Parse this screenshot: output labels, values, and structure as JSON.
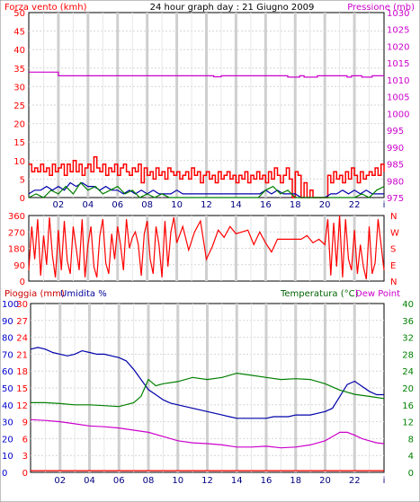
{
  "chart_data": [
    {
      "type": "line",
      "title": "24 hour graph day : 21 Giugno 2009",
      "left_axis": {
        "label": "Forza vento (kmh)",
        "ylim": [
          0,
          50
        ],
        "ticks": [
          0,
          5,
          10,
          15,
          20,
          25,
          30,
          35,
          40,
          45,
          50
        ],
        "color": "#ff0000"
      },
      "right_axis": {
        "label": "Pressione (mb)",
        "ylim": [
          975,
          1030
        ],
        "ticks": [
          975,
          980,
          985,
          990,
          995,
          1000,
          1005,
          1010,
          1015,
          1020,
          1025,
          1030
        ],
        "color": "#cc00cc"
      },
      "x_ticks": [
        "02",
        "04",
        "06",
        "08",
        "10",
        "12",
        "14",
        "16",
        "18",
        "20",
        "22"
      ],
      "x_end_marker": "i",
      "xlim": [
        0,
        24
      ],
      "grid": true,
      "series": [
        {
          "axis": "right",
          "color": "#cc00cc",
          "x": [
            0,
            2.0,
            2.0,
            12.5,
            12.5,
            13.0,
            13.0,
            17.5,
            17.5,
            18.3,
            18.3,
            18.6,
            18.6,
            19.5,
            19.5,
            21.5,
            21.5,
            21.8,
            21.8,
            22.5,
            22.5,
            23.2,
            23.2,
            24
          ],
          "y": [
            1012.3,
            1012.3,
            1011.2,
            1011.2,
            1010.9,
            1010.9,
            1011.2,
            1011.2,
            1010.8,
            1010.8,
            1011.2,
            1011.2,
            1010.8,
            1010.8,
            1011.2,
            1011.2,
            1010.8,
            1010.8,
            1011.2,
            1011.2,
            1010.8,
            1010.8,
            1011.2,
            1011.2
          ]
        },
        {
          "axis": "left",
          "color": "#ff0000",
          "x": [
            0,
            0.2,
            0.4,
            0.6,
            0.8,
            1.0,
            1.2,
            1.4,
            1.6,
            1.8,
            2.0,
            2.2,
            2.4,
            2.6,
            2.8,
            3.0,
            3.2,
            3.4,
            3.6,
            3.8,
            4.0,
            4.2,
            4.4,
            4.6,
            4.8,
            5.0,
            5.2,
            5.4,
            5.6,
            5.8,
            6.0,
            6.2,
            6.4,
            6.6,
            6.8,
            7.0,
            7.2,
            7.4,
            7.6,
            7.8,
            8.0,
            8.2,
            8.4,
            8.6,
            8.8,
            9.0,
            9.2,
            9.4,
            9.6,
            9.8,
            10.0,
            10.2,
            10.4,
            10.6,
            10.8,
            11.0,
            11.2,
            11.4,
            11.6,
            11.8,
            12.0,
            12.2,
            12.4,
            12.6,
            12.8,
            13.0,
            13.2,
            13.4,
            13.6,
            13.8,
            14.0,
            14.2,
            14.4,
            14.6,
            14.8,
            15.0,
            15.2,
            15.4,
            15.6,
            15.8,
            16.0,
            16.2,
            16.4,
            16.6,
            16.8,
            17.0,
            17.2,
            17.4,
            17.6,
            17.8,
            18.0,
            18.2,
            18.4,
            18.6,
            18.8,
            19.0,
            19.2,
            19.4,
            19.6,
            19.8,
            20.0,
            20.2,
            20.4,
            20.6,
            20.8,
            21.0,
            21.2,
            21.4,
            21.6,
            21.8,
            22.0,
            22.2,
            22.4,
            22.6,
            22.8,
            23.0,
            23.2,
            23.4,
            23.6,
            23.8,
            24.0
          ],
          "y": [
            9,
            7,
            8,
            7,
            9,
            7,
            8,
            6,
            9,
            7,
            8,
            9,
            6,
            9,
            7,
            10,
            7,
            9,
            6,
            8,
            9,
            7,
            11,
            8,
            7,
            9,
            6,
            8,
            7,
            9,
            6,
            8,
            9,
            7,
            6,
            8,
            7,
            9,
            4,
            8,
            6,
            7,
            5,
            8,
            6,
            7,
            5,
            8,
            7,
            6,
            7,
            5,
            6,
            7,
            5,
            8,
            6,
            7,
            4,
            6,
            7,
            5,
            6,
            4,
            7,
            5,
            6,
            7,
            5,
            6,
            4,
            6,
            5,
            7,
            4,
            6,
            5,
            7,
            5,
            6,
            4,
            7,
            5,
            8,
            6,
            4,
            6,
            8,
            5,
            0,
            7,
            6,
            0,
            4,
            0,
            2,
            0,
            0,
            0,
            0,
            0,
            6,
            4,
            7,
            5,
            6,
            4,
            7,
            5,
            8,
            6,
            4,
            7,
            5,
            6,
            7,
            6,
            8,
            6,
            9,
            7
          ]
        },
        {
          "axis": "left",
          "color": "#0000aa",
          "x": [
            0,
            0.4,
            0.8,
            1.2,
            1.6,
            2.0,
            2.4,
            2.8,
            3.2,
            3.6,
            4.0,
            4.4,
            4.8,
            5.2,
            5.6,
            6.0,
            6.4,
            6.8,
            7.2,
            7.6,
            8.0,
            8.4,
            8.8,
            9.2,
            9.6,
            10.0,
            10.4,
            10.8,
            11.2,
            11.6,
            12.0,
            12.4,
            12.8,
            13.2,
            13.6,
            14.0,
            14.4,
            14.8,
            15.2,
            15.6,
            16.0,
            16.4,
            16.8,
            17.2,
            17.6,
            18.0,
            18.4,
            18.8,
            19.2,
            19.6,
            20.0,
            20.4,
            20.8,
            21.2,
            21.6,
            22.0,
            22.4,
            22.8,
            23.2,
            23.6,
            24.0
          ],
          "y": [
            1,
            2,
            2,
            3,
            2,
            3,
            2,
            4,
            3,
            4,
            3,
            3,
            2,
            3,
            2,
            2,
            1,
            2,
            1,
            2,
            1,
            2,
            1,
            1,
            1,
            2,
            1,
            1,
            1,
            1,
            1,
            1,
            1,
            1,
            1,
            1,
            1,
            1,
            1,
            1,
            2,
            1,
            2,
            1,
            1,
            1,
            0,
            0,
            0,
            0,
            0,
            1,
            1,
            2,
            1,
            2,
            1,
            2,
            1,
            1,
            1
          ]
        },
        {
          "axis": "left",
          "color": "#008000",
          "x": [
            0,
            0.5,
            1.0,
            1.5,
            2.0,
            2.5,
            3.0,
            3.5,
            4.0,
            4.5,
            5.0,
            5.5,
            6.0,
            6.5,
            7.0,
            7.5,
            8.0,
            8.5,
            9.0,
            9.5,
            10.0,
            10.5,
            11.0,
            11.5,
            12.0,
            12.5,
            13.0,
            13.5,
            14.0,
            14.5,
            15.0,
            15.5,
            16.0,
            16.5,
            17.0,
            17.5,
            18.0,
            18.5,
            19.0,
            19.5,
            20.0,
            20.5,
            21.0,
            21.5,
            22.0,
            22.5,
            23.0,
            23.5,
            24.0
          ],
          "y": [
            0,
            1,
            0,
            2,
            1,
            3,
            1,
            4,
            2,
            3,
            1,
            2,
            3,
            1,
            2,
            0,
            1,
            0,
            1,
            0,
            0,
            0,
            0,
            0,
            0,
            0,
            0,
            0,
            0,
            0,
            0,
            0,
            2,
            3,
            1,
            2,
            0,
            0,
            0,
            0,
            0,
            0,
            0,
            0,
            0,
            1,
            0,
            2,
            3
          ]
        }
      ]
    },
    {
      "type": "line",
      "left_axis": {
        "ylim": [
          0,
          360
        ],
        "ticks": [
          0,
          90,
          180,
          270,
          360
        ],
        "color": "#ff0000"
      },
      "right_axis": {
        "ticks": [
          "N",
          "E",
          "S",
          "W",
          "N"
        ],
        "color": "#ff0000"
      },
      "x_ticks": [],
      "xlim": [
        0,
        24
      ],
      "grid": true,
      "series": [
        {
          "axis": "left",
          "color": "#ff0000",
          "x": [
            0,
            0.2,
            0.4,
            0.6,
            0.8,
            1.0,
            1.2,
            1.4,
            1.6,
            1.8,
            2.0,
            2.2,
            2.4,
            2.6,
            2.8,
            3.0,
            3.2,
            3.4,
            3.6,
            3.8,
            4.0,
            4.2,
            4.4,
            4.6,
            4.8,
            5.0,
            5.2,
            5.4,
            5.6,
            5.8,
            6.0,
            6.2,
            6.4,
            6.6,
            6.8,
            7.0,
            7.2,
            7.4,
            7.6,
            7.8,
            8.0,
            8.2,
            8.4,
            8.6,
            8.8,
            9.0,
            9.2,
            9.4,
            9.6,
            9.8,
            10.0,
            10.4,
            10.8,
            11.2,
            11.6,
            12.0,
            12.4,
            12.8,
            13.2,
            13.6,
            14.0,
            14.4,
            14.8,
            15.2,
            15.6,
            16.0,
            16.4,
            16.8,
            17.2,
            17.6,
            18.0,
            18.4,
            18.8,
            19.2,
            19.6,
            20.0,
            20.2,
            20.4,
            20.6,
            20.8,
            21.0,
            21.2,
            21.4,
            21.6,
            21.8,
            22.0,
            22.2,
            22.4,
            22.6,
            22.8,
            23.0,
            23.2,
            23.4,
            23.6,
            23.8,
            24.0
          ],
          "y": [
            60,
            300,
            120,
            340,
            30,
            250,
            90,
            350,
            140,
            20,
            280,
            60,
            330,
            110,
            40,
            300,
            180,
            60,
            340,
            20,
            200,
            300,
            80,
            20,
            250,
            340,
            100,
            40,
            260,
            120,
            300,
            200,
            60,
            340,
            180,
            240,
            270,
            200,
            30,
            260,
            330,
            120,
            40,
            300,
            200,
            20,
            330,
            80,
            270,
            350,
            210,
            300,
            170,
            270,
            330,
            120,
            190,
            280,
            240,
            300,
            260,
            270,
            280,
            200,
            270,
            210,
            160,
            230,
            230,
            230,
            230,
            230,
            250,
            210,
            230,
            200,
            340,
            30,
            320,
            80,
            360,
            20,
            340,
            120,
            60,
            280,
            40,
            200,
            80,
            10,
            300,
            40,
            100,
            340,
            200,
            60
          ]
        }
      ]
    },
    {
      "type": "line",
      "legend": [
        "Pioggia (mm)",
        "Umidita %",
        "Temperatura (°C)",
        "Dew Point"
      ],
      "axis_rain": {
        "label": "Pioggia (mm)",
        "ylim": [
          0,
          30
        ],
        "ticks": [
          0,
          3,
          6,
          9,
          12,
          15,
          18,
          21,
          24,
          27,
          30
        ],
        "color": "#ff0000"
      },
      "axis_humidity": {
        "label": "Umidita %",
        "ylim": [
          0,
          100
        ],
        "ticks": [
          0,
          10,
          20,
          30,
          40,
          50,
          60,
          70,
          80,
          90,
          100
        ],
        "color": "#0000cc"
      },
      "axis_temperature": {
        "label": "Temperatura (°C)",
        "ylim": [
          0,
          40
        ],
        "ticks": [
          0,
          4,
          8,
          12,
          16,
          20,
          24,
          28,
          32,
          36,
          40
        ],
        "color": "#008000"
      },
      "dew_point_label": "Dew Point",
      "x_ticks": [
        "02",
        "04",
        "06",
        "08",
        "10",
        "12",
        "14",
        "16",
        "18",
        "20",
        "22"
      ],
      "x_end_marker": "i",
      "xlim": [
        0,
        24
      ],
      "grid": true,
      "series": [
        {
          "name": "Pioggia (mm)",
          "axis": "rain",
          "color": "#ff0000",
          "x": [
            0,
            24
          ],
          "y": [
            0.3,
            0.3
          ]
        },
        {
          "name": "Umidita %",
          "axis": "humidity",
          "color": "#0000aa",
          "x": [
            0,
            0.5,
            1.0,
            1.5,
            2.0,
            2.5,
            3.0,
            3.5,
            4.0,
            4.5,
            5.0,
            5.5,
            6.0,
            6.5,
            7.0,
            7.5,
            8.0,
            8.5,
            9.0,
            9.5,
            10.0,
            10.5,
            11.0,
            11.5,
            12.0,
            12.5,
            13.0,
            13.5,
            14.0,
            14.5,
            15.0,
            15.5,
            16.0,
            16.5,
            17.0,
            17.5,
            18.0,
            18.5,
            19.0,
            19.5,
            20.0,
            20.5,
            21.0,
            21.5,
            22.0,
            22.5,
            23.0,
            23.5,
            24.0
          ],
          "y": [
            73,
            74,
            73,
            71,
            70,
            69,
            70,
            72,
            71,
            70,
            70,
            69,
            68,
            66,
            61,
            55,
            49,
            46,
            43,
            41,
            40,
            39,
            38,
            37,
            36,
            35,
            34,
            33,
            32,
            32,
            32,
            32,
            32,
            33,
            33,
            33,
            34,
            34,
            34,
            35,
            36,
            38,
            45,
            52,
            54,
            51,
            48,
            46,
            46
          ]
        },
        {
          "name": "Temperatura (°C)",
          "axis": "temperature",
          "color": "#008000",
          "x": [
            0,
            1,
            2,
            3,
            4,
            5,
            6,
            7,
            7.5,
            8,
            8.5,
            9,
            10,
            11,
            12,
            13,
            14,
            15,
            16,
            17,
            18,
            19,
            20,
            21,
            22,
            23,
            24
          ],
          "y": [
            16.5,
            16.5,
            16.3,
            16.0,
            16.0,
            15.8,
            15.6,
            16.5,
            18.0,
            22.0,
            20.5,
            21.0,
            21.5,
            22.5,
            22.0,
            22.5,
            23.5,
            23.0,
            22.5,
            22.0,
            22.2,
            22.0,
            21.0,
            19.5,
            18.5,
            18.0,
            17.5
          ]
        },
        {
          "name": "Dew Point",
          "axis": "temperature",
          "color": "#cc00cc",
          "x": [
            0,
            1,
            2,
            3,
            4,
            5,
            6,
            7,
            8,
            9,
            10,
            11,
            12,
            13,
            14,
            15,
            16,
            17,
            18,
            19,
            20,
            20.5,
            21,
            21.5,
            22,
            22.5,
            23,
            23.5,
            24
          ],
          "y": [
            12.5,
            12.3,
            12.0,
            11.5,
            11.0,
            10.8,
            10.5,
            10.0,
            9.5,
            8.5,
            7.5,
            7.0,
            6.8,
            6.5,
            6.0,
            6.0,
            6.2,
            5.8,
            6.0,
            6.5,
            7.5,
            8.5,
            9.5,
            9.5,
            8.8,
            8.0,
            7.5,
            7.0,
            6.8
          ]
        }
      ]
    }
  ]
}
